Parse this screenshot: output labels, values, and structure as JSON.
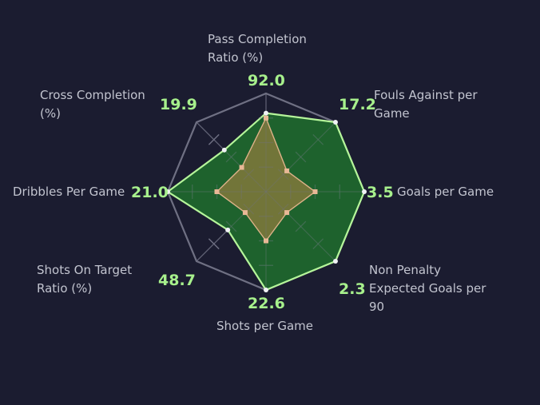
{
  "chart_data": {
    "type": "radar",
    "categories": [
      "Pass Completion Ratio (%)",
      "Fouls Against per Game",
      "Goals per Game",
      "Non Penalty Expected Goals per 90",
      "Shots per Game",
      "Shots On Target Ratio (%)",
      "Dribbles Per Game",
      "Cross Completion (%)"
    ],
    "labels": [
      "Pass Completion Ratio (%)",
      "Fouls Against per Game",
      "Goals per Game",
      "Non Penalty Expected Goals per 90",
      "Shots per Game",
      "Shots On Target Ratio (%)",
      "Dribbles Per Game",
      "Cross Completion (%)"
    ],
    "values_display": [
      "92.0",
      "17.2",
      "3.5",
      "2.3",
      "22.6",
      "48.7",
      "21.0",
      "19.9"
    ],
    "series": [
      {
        "normalized": [
          0.8,
          1.0,
          1.0,
          1.0,
          1.0,
          0.55,
          1.0,
          0.6
        ],
        "color": "#1f6a2e",
        "stroke": "#b5f59a"
      },
      {
        "normalized": [
          0.75,
          0.3,
          0.5,
          0.3,
          0.5,
          0.3,
          0.5,
          0.35
        ],
        "color": "#857a3c",
        "stroke": "#ddb289"
      }
    ],
    "rings": 4,
    "grid": true,
    "colors": {
      "background": "#1b1c30",
      "grid": "#6f7083",
      "label": "#c2c4cf",
      "value": "#a7f08c"
    }
  }
}
